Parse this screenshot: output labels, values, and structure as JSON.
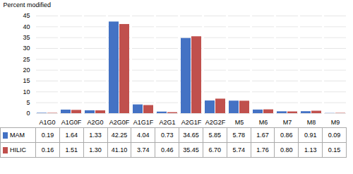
{
  "chart_data": {
    "type": "bar",
    "categories": [
      "A1G0",
      "A1G0F",
      "A2G0",
      "A2G0F",
      "A1G1F",
      "A2G1",
      "A2G1F",
      "A2G2F",
      "M5",
      "M6",
      "M7",
      "M8",
      "M9"
    ],
    "series": [
      {
        "name": "MAM",
        "color": "#4472C4",
        "values": [
          0.19,
          1.64,
          1.33,
          42.25,
          4.04,
          0.73,
          34.65,
          5.85,
          5.78,
          1.67,
          0.86,
          0.91,
          0.09
        ],
        "value_labels": [
          "0.19",
          "1.64",
          "1.33",
          "42.25",
          "4.04",
          "0.73",
          "34.65",
          "5.85",
          "5.78",
          "1.67",
          "0.86",
          "0.91",
          "0.09"
        ]
      },
      {
        "name": "HILIC",
        "color": "#C0504D",
        "values": [
          0.16,
          1.51,
          1.3,
          41.1,
          3.74,
          0.46,
          35.45,
          6.7,
          5.74,
          1.76,
          0.8,
          1.13,
          0.15
        ],
        "value_labels": [
          "0.16",
          "1.51",
          "1.30",
          "41.10",
          "3.74",
          "0.46",
          "35.45",
          "6.70",
          "5.74",
          "1.76",
          "0.80",
          "1.13",
          "0.15"
        ]
      }
    ],
    "ylabel": "Percent modified",
    "ylim": [
      0,
      45
    ],
    "yticks": [
      0,
      5,
      10,
      15,
      20,
      25,
      30,
      35,
      40,
      45
    ],
    "grid": true
  }
}
